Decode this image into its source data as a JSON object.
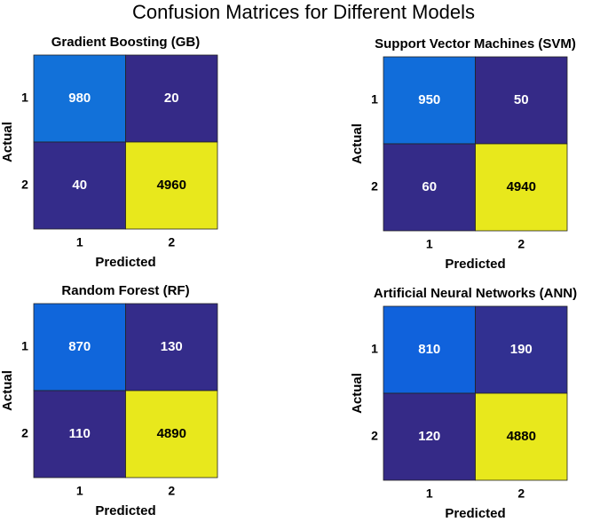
{
  "title": "Confusion Matrices for Different Models",
  "colormap": [
    "#352a87",
    "#0f5cdd",
    "#1481d6",
    "#06a4ca",
    "#2eb7a4",
    "#87bf77",
    "#d1bb59",
    "#fec832",
    "#e8e81c"
  ],
  "chart_data": [
    {
      "type": "heatmap",
      "title": "Gradient Boosting (GB)",
      "x_label": "Predicted",
      "y_label": "Actual",
      "x_categories": [
        "1",
        "2"
      ],
      "y_categories": [
        "1",
        "2"
      ],
      "values": [
        [
          980,
          20
        ],
        [
          40,
          4960
        ]
      ]
    },
    {
      "type": "heatmap",
      "title": "Support Vector Machines (SVM)",
      "x_label": "Predicted",
      "y_label": "Actual",
      "x_categories": [
        "1",
        "2"
      ],
      "y_categories": [
        "1",
        "2"
      ],
      "values": [
        [
          950,
          50
        ],
        [
          60,
          4940
        ]
      ]
    },
    {
      "type": "heatmap",
      "title": "Random Forest (RF)",
      "x_label": "Predicted",
      "y_label": "Actual",
      "x_categories": [
        "1",
        "2"
      ],
      "y_categories": [
        "1",
        "2"
      ],
      "values": [
        [
          870,
          130
        ],
        [
          110,
          4890
        ]
      ]
    },
    {
      "type": "heatmap",
      "title": "Artificial Neural Networks (ANN)",
      "x_label": "Predicted",
      "y_label": "Actual",
      "x_categories": [
        "1",
        "2"
      ],
      "y_categories": [
        "1",
        "2"
      ],
      "values": [
        [
          810,
          190
        ],
        [
          120,
          4880
        ]
      ]
    }
  ]
}
